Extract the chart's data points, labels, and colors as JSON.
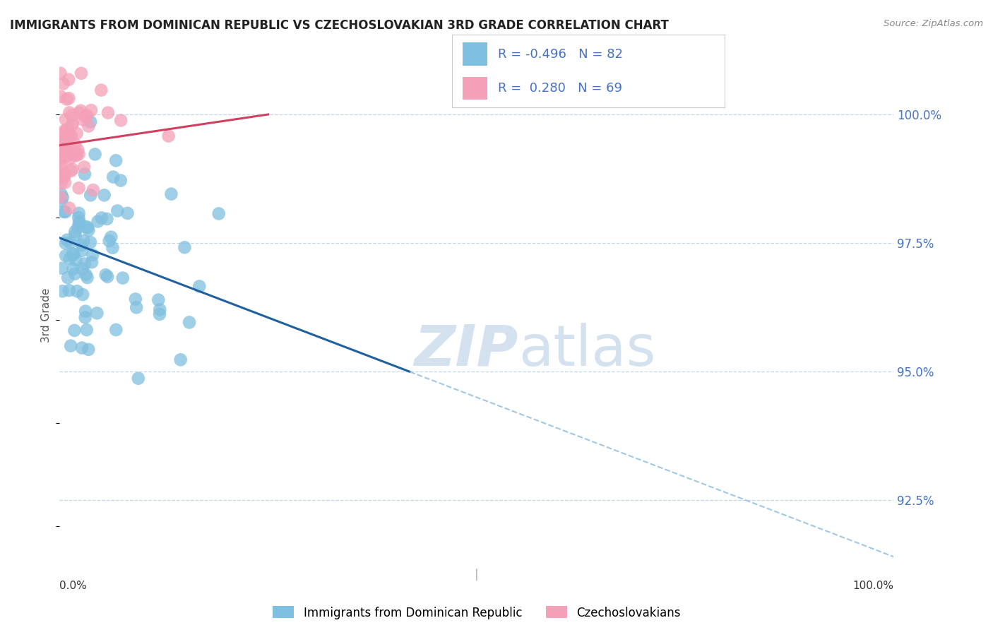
{
  "title": "IMMIGRANTS FROM DOMINICAN REPUBLIC VS CZECHOSLOVAKIAN 3RD GRADE CORRELATION CHART",
  "source": "Source: ZipAtlas.com",
  "ylabel": "3rd Grade",
  "xlim": [
    0.0,
    100.0
  ],
  "ylim": [
    91.2,
    101.0
  ],
  "yticks": [
    92.5,
    95.0,
    97.5,
    100.0
  ],
  "ytick_labels": [
    "92.5%",
    "95.0%",
    "97.5%",
    "100.0%"
  ],
  "blue_color": "#7fbfdf",
  "pink_color": "#f4a0b8",
  "trend_blue_color": "#2060a0",
  "trend_pink_color": "#d04060",
  "dashed_color": "#a0c8e8",
  "legend_blue_r": "-0.496",
  "legend_blue_n": "82",
  "legend_pink_r": "0.280",
  "legend_pink_n": "69",
  "background_color": "#ffffff",
  "grid_color": "#c8d4e8",
  "watermark_color": "#d4e2f0",
  "blue_trend_x0": 0.0,
  "blue_trend_y0": 97.6,
  "blue_trend_x1": 100.0,
  "blue_trend_y1": 91.4,
  "blue_solid_end": 42.0,
  "pink_trend_x0": 0.0,
  "pink_trend_y0": 99.4,
  "pink_trend_x1": 25.0,
  "pink_trend_y1": 100.0,
  "axis_color": "#cccccc",
  "tick_label_color": "#4472C4",
  "ylabel_color": "#555555",
  "title_color": "#222222"
}
